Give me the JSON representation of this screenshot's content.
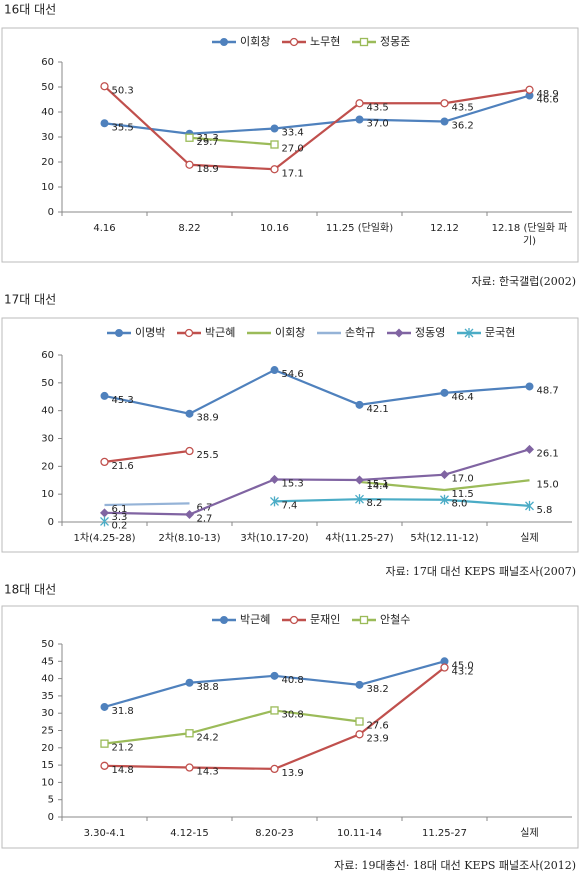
{
  "chart_data": [
    {
      "type": "line",
      "title": "16대 대선",
      "source": "자료: 한국갤럽(2002)",
      "categories": [
        "4.16",
        "8.22",
        "10.16",
        "11.25 (단일화)",
        "12.12",
        "12.18 (단일화 파기)"
      ],
      "ylim": [
        0,
        60
      ],
      "yticks": [
        0,
        10,
        20,
        30,
        40,
        50,
        60
      ],
      "grid": false,
      "legend": "top",
      "series": [
        {
          "name": "이회창",
          "color": "#4f81bd",
          "marker": "circle",
          "values": [
            35.5,
            31.3,
            33.4,
            37.0,
            36.2,
            46.6
          ],
          "value_labels": [
            "35.5",
            "31.3",
            "33.4",
            "37.0",
            "36.2",
            "46.6"
          ]
        },
        {
          "name": "노무현",
          "color": "#c0504d",
          "marker": "open-circle",
          "values": [
            50.3,
            18.9,
            17.1,
            43.5,
            43.5,
            48.9
          ],
          "value_labels": [
            "50.3",
            "18.9",
            "17.1",
            "43.5",
            "43.5",
            "48.9"
          ]
        },
        {
          "name": "정몽준",
          "color": "#9bbb59",
          "marker": "open-square",
          "values": [
            null,
            29.7,
            27.0,
            null,
            null,
            null
          ],
          "value_labels": [
            null,
            "29.7",
            "27.0",
            null,
            null,
            null
          ]
        }
      ]
    },
    {
      "type": "line",
      "title": "17대 대선",
      "source": "자료: 17대 대선 KEPS 패널조사(2007)",
      "categories": [
        "1차(4.25-28)",
        "2차(8.10-13)",
        "3차(10.17-20)",
        "4차(11.25-27)",
        "5차(12.11-12)",
        "실제"
      ],
      "ylim": [
        0,
        60
      ],
      "yticks": [
        0,
        10,
        20,
        30,
        40,
        50,
        60
      ],
      "grid": false,
      "legend": "top",
      "series": [
        {
          "name": "이명박",
          "color": "#4f81bd",
          "marker": "circle",
          "values": [
            45.3,
            38.9,
            54.6,
            42.1,
            46.4,
            48.7
          ],
          "value_labels": [
            "45.3",
            "38.9",
            "54.6",
            "42.1",
            "46.4",
            "48.7"
          ]
        },
        {
          "name": "박근혜",
          "color": "#c0504d",
          "marker": "open-circle",
          "values": [
            21.6,
            25.5,
            null,
            null,
            null,
            null
          ],
          "value_labels": [
            "21.6",
            "25.5",
            null,
            null,
            null,
            null
          ]
        },
        {
          "name": "이회창",
          "color": "#9bbb59",
          "marker": "none",
          "values": [
            null,
            null,
            null,
            14.4,
            11.5,
            15.0
          ],
          "value_labels": [
            null,
            null,
            null,
            "14.4",
            "11.5",
            "15.0"
          ]
        },
        {
          "name": "손학규",
          "color": "#95b3d7",
          "marker": "none",
          "values": [
            6.1,
            6.7,
            null,
            null,
            null,
            null
          ],
          "value_labels": [
            "6.1",
            "6.7",
            null,
            null,
            null,
            null
          ]
        },
        {
          "name": "정동영",
          "color": "#8064a2",
          "marker": "diamond",
          "values": [
            3.3,
            2.7,
            15.3,
            15.1,
            17.0,
            26.1
          ],
          "value_labels": [
            "3.3",
            "2.7",
            "15.3",
            "15.1",
            "17.0",
            "26.1"
          ]
        },
        {
          "name": "문국현",
          "color": "#4bacc6",
          "marker": "star",
          "values": [
            0.2,
            null,
            7.4,
            8.2,
            8.0,
            5.8
          ],
          "value_labels": [
            "0.2",
            null,
            "7.4",
            "8.2",
            "8.0",
            "5.8"
          ]
        }
      ]
    },
    {
      "type": "line",
      "title": "18대 대선",
      "source": "자료: 19대총선· 18대 대선 KEPS 패널조사(2012)",
      "categories": [
        "3.30-4.1",
        "4.12-15",
        "8.20-23",
        "10.11-14",
        "11.25-27",
        "실제"
      ],
      "ylim": [
        0,
        50
      ],
      "yticks": [
        0,
        5,
        10,
        15,
        20,
        25,
        30,
        35,
        40,
        45,
        50
      ],
      "grid": false,
      "legend": "top",
      "series": [
        {
          "name": "박근혜",
          "color": "#4f81bd",
          "marker": "circle",
          "values": [
            31.8,
            38.8,
            40.8,
            38.2,
            45.0,
            null
          ],
          "value_labels": [
            "31.8",
            "38.8",
            "40.8",
            "38.2",
            "45.0",
            null
          ]
        },
        {
          "name": "문재인",
          "color": "#c0504d",
          "marker": "open-circle",
          "values": [
            14.8,
            14.3,
            13.9,
            23.9,
            43.2,
            null
          ],
          "value_labels": [
            "14.8",
            "14.3",
            "13.9",
            "23.9",
            "43.2",
            null
          ]
        },
        {
          "name": "안철수",
          "color": "#9bbb59",
          "marker": "open-square",
          "values": [
            21.2,
            24.2,
            30.8,
            27.6,
            null,
            null
          ],
          "value_labels": [
            "21.2",
            "24.2",
            "30.8",
            "27.6",
            null,
            null
          ]
        }
      ]
    }
  ]
}
